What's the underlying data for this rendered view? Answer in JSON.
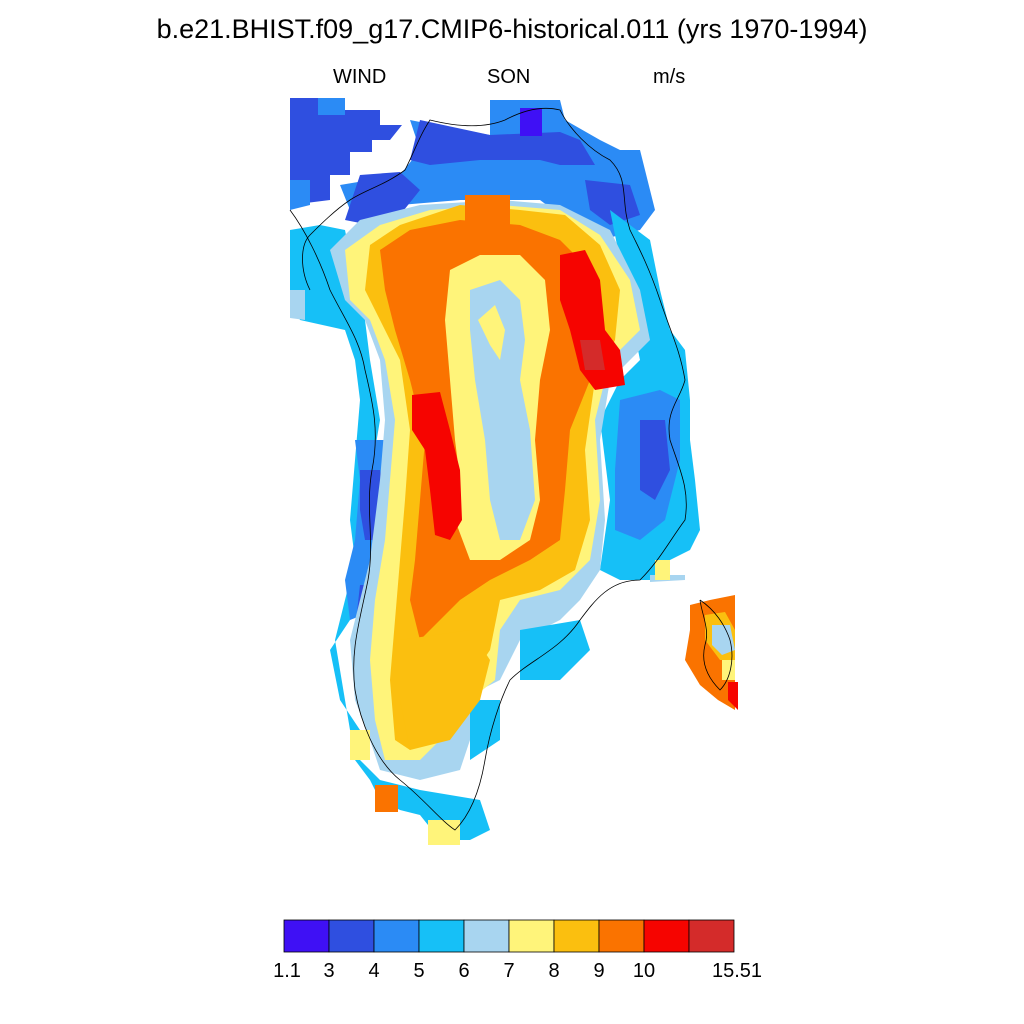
{
  "title": "b.e21.BHIST.f09_g17.CMIP6-historical.011 (yrs 1970-1994)",
  "subtitles": {
    "left": "WIND",
    "center": "SON",
    "right": "m/s"
  },
  "colorbar": {
    "colors": [
      "#3f10f5",
      "#2f4fe0",
      "#2b8bf5",
      "#16c0f7",
      "#a8d5f0",
      "#fff47a",
      "#fbbf0f",
      "#fa7300",
      "#f60400",
      "#d42b2a"
    ],
    "labels": [
      "1.1",
      "3",
      "4",
      "5",
      "6",
      "7",
      "8",
      "9",
      "10",
      "15.51"
    ]
  }
}
